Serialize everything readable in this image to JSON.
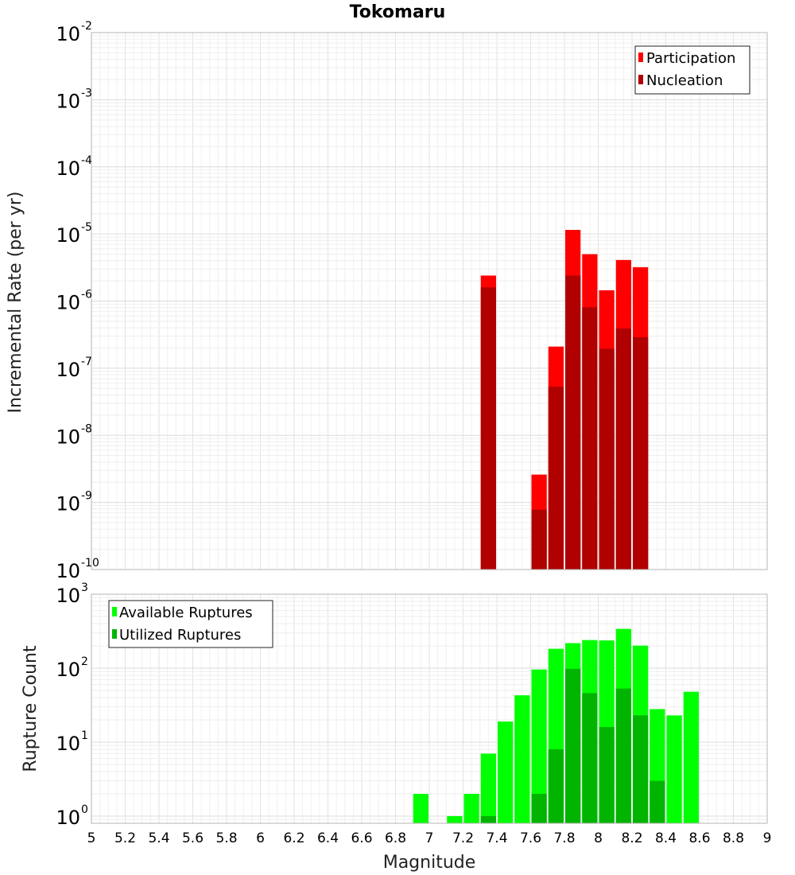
{
  "title": "Tokomaru",
  "colors": {
    "participation": "#ff0000",
    "nucleation": "#b00000",
    "available": "#00ff00",
    "utilized": "#00b400"
  },
  "chart_data": [
    {
      "type": "bar",
      "name": "rate-panel",
      "title": "Tokomaru",
      "ylabel": "Incremental Rate (per yr)",
      "xlabel": "",
      "yscale": "log",
      "ylim": [
        1e-10,
        0.01
      ],
      "xlim": [
        5,
        9
      ],
      "y_tick_exponents": [
        -10,
        -9,
        -8,
        -7,
        -6,
        -5,
        -4,
        -3,
        -2
      ],
      "grid": true,
      "legend_position": "top-right",
      "series": [
        {
          "name": "Participation",
          "color": "#ff0000",
          "points": [
            {
              "x": 7.35,
              "y": 2.4e-06
            },
            {
              "x": 7.65,
              "y": 2.6e-09
            },
            {
              "x": 7.75,
              "y": 2.1e-07
            },
            {
              "x": 7.85,
              "y": 1.15e-05
            },
            {
              "x": 7.95,
              "y": 5e-06
            },
            {
              "x": 8.05,
              "y": 1.45e-06
            },
            {
              "x": 8.15,
              "y": 4.1e-06
            },
            {
              "x": 8.25,
              "y": 3.2e-06
            }
          ]
        },
        {
          "name": "Nucleation",
          "color": "#b00000",
          "points": [
            {
              "x": 7.35,
              "y": 1.6e-06
            },
            {
              "x": 7.65,
              "y": 7.8e-10
            },
            {
              "x": 7.75,
              "y": 5.3e-08
            },
            {
              "x": 7.85,
              "y": 2.4e-06
            },
            {
              "x": 7.95,
              "y": 8.1e-07
            },
            {
              "x": 8.05,
              "y": 1.95e-07
            },
            {
              "x": 8.15,
              "y": 3.9e-07
            },
            {
              "x": 8.25,
              "y": 2.9e-07
            }
          ]
        }
      ]
    },
    {
      "type": "bar",
      "name": "count-panel",
      "title": "",
      "ylabel": "Rupture Count",
      "xlabel": "Magnitude",
      "yscale": "log",
      "ylim": [
        0.8,
        1000
      ],
      "xlim": [
        5,
        9
      ],
      "y_tick_exponents": [
        0,
        1,
        2,
        3
      ],
      "x_ticks": [
        "5",
        "5.2",
        "5.4",
        "5.6",
        "5.8",
        "6",
        "6.2",
        "6.4",
        "6.6",
        "6.8",
        "7",
        "7.2",
        "7.4",
        "7.6",
        "7.8",
        "8",
        "8.2",
        "8.4",
        "8.6",
        "8.8",
        "9"
      ],
      "grid": true,
      "legend_position": "top-left",
      "series": [
        {
          "name": "Available Ruptures",
          "color": "#00ff00",
          "points": [
            {
              "x": 6.95,
              "y": 2
            },
            {
              "x": 7.15,
              "y": 1
            },
            {
              "x": 7.25,
              "y": 2
            },
            {
              "x": 7.35,
              "y": 7
            },
            {
              "x": 7.45,
              "y": 19
            },
            {
              "x": 7.55,
              "y": 43
            },
            {
              "x": 7.65,
              "y": 96
            },
            {
              "x": 7.75,
              "y": 183
            },
            {
              "x": 7.85,
              "y": 218
            },
            {
              "x": 7.95,
              "y": 240
            },
            {
              "x": 8.05,
              "y": 237
            },
            {
              "x": 8.15,
              "y": 340
            },
            {
              "x": 8.25,
              "y": 202
            },
            {
              "x": 8.35,
              "y": 28
            },
            {
              "x": 8.45,
              "y": 23
            },
            {
              "x": 8.55,
              "y": 48
            }
          ]
        },
        {
          "name": "Utilized Ruptures",
          "color": "#00b400",
          "points": [
            {
              "x": 7.35,
              "y": 1
            },
            {
              "x": 7.65,
              "y": 2
            },
            {
              "x": 7.75,
              "y": 8
            },
            {
              "x": 7.85,
              "y": 98
            },
            {
              "x": 7.95,
              "y": 46
            },
            {
              "x": 8.05,
              "y": 16
            },
            {
              "x": 8.15,
              "y": 53
            },
            {
              "x": 8.25,
              "y": 23
            },
            {
              "x": 8.35,
              "y": 3
            }
          ]
        }
      ]
    }
  ]
}
